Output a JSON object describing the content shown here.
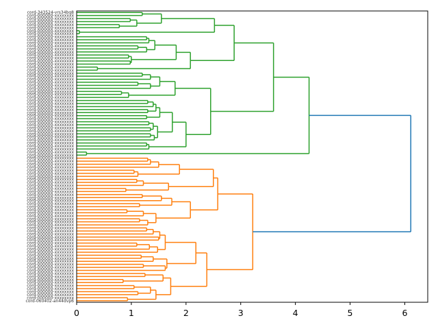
{
  "chart_data": {
    "type": "dendrogram",
    "orientation": "left-to-right",
    "title": "",
    "xlabel": "",
    "ylabel": "",
    "xlim": [
      0,
      6.42
    ],
    "xticks": [
      0,
      1,
      2,
      3,
      4,
      5,
      6
    ],
    "xtick_labels": [
      "0",
      "1",
      "2",
      "3",
      "4",
      "5",
      "6"
    ],
    "grid": false,
    "colors": {
      "cluster1": "#2ca02c",
      "cluster2": "#ff7f0e",
      "above_threshold": "#1f77b4"
    },
    "leaf_label_prefix": "cord-",
    "visible_leaf_labels": {
      "first": "cord-343524-vrs34bq8",
      "last": "cord-060402-an44dvp6"
    },
    "tree": {
      "h": 6.11,
      "c": "above_threshold",
      "children": [
        {
          "h": 4.25,
          "c": "cluster1",
          "children": [
            {
              "h": 3.6,
              "children": [
                {
                  "h": 2.88,
                  "children": [
                    {
                      "h": 2.52,
                      "children": [
                        {
                          "h": 1.55,
                          "children": [
                            {
                              "h": 1.2,
                              "children": [
                                "L",
                                "L"
                              ]
                            },
                            {
                              "h": 1.1,
                              "children": [
                                {
                                  "h": 0.98,
                                  "children": [
                                    "L",
                                    "L"
                                  ]
                                },
                                {
                                  "h": 0.78,
                                  "children": [
                                    "L",
                                    "L"
                                  ]
                                }
                              ]
                            }
                          ]
                        },
                        {
                          "h": 0.05,
                          "children": [
                            "L",
                            "L"
                          ]
                        }
                      ]
                    },
                    {
                      "h": 2.08,
                      "children": [
                        {
                          "h": 1.82,
                          "children": [
                            {
                              "h": 1.43,
                              "children": [
                                {
                                  "h": 1.32,
                                  "children": [
                                    {
                                      "h": 1.28,
                                      "children": [
                                        "L",
                                        "L"
                                      ]
                                    },
                                    "L"
                                  ]
                                },
                                {
                                  "h": 1.28,
                                  "children": [
                                    {
                                      "h": 1.12,
                                      "children": [
                                        "L",
                                        "L"
                                      ]
                                    },
                                    "L"
                                  ]
                                }
                              ]
                            },
                            {
                              "h": 1.0,
                              "children": [
                                {
                                  "h": 0.95,
                                  "children": [
                                    "L",
                                    "L"
                                  ]
                                },
                                {
                                  "h": 0.98,
                                  "children": [
                                    "L",
                                    "L"
                                  ]
                                }
                              ]
                            }
                          ]
                        },
                        {
                          "h": 0.38,
                          "children": [
                            "L",
                            "L"
                          ]
                        }
                      ]
                    }
                  ]
                },
                {
                  "h": 2.45,
                  "children": [
                    {
                      "h": 1.8,
                      "children": [
                        {
                          "h": 1.52,
                          "children": [
                            {
                              "h": 1.35,
                              "children": [
                                {
                                  "h": 1.2,
                                  "children": [
                                    "L",
                                    "L"
                                  ]
                                },
                                "L"
                              ]
                            },
                            {
                              "h": 1.35,
                              "children": [
                                {
                                  "h": 1.12,
                                  "children": [
                                    "L",
                                    "L"
                                  ]
                                },
                                "L"
                              ]
                            }
                          ]
                        },
                        {
                          "h": 0.95,
                          "children": [
                            {
                              "h": 0.82,
                              "children": [
                                "L",
                                "L"
                              ]
                            },
                            "L"
                          ]
                        }
                      ]
                    },
                    {
                      "h": 2.0,
                      "children": [
                        {
                          "h": 1.75,
                          "children": [
                            {
                              "h": 1.52,
                              "children": [
                                {
                                  "h": 1.45,
                                  "children": [
                                    {
                                      "h": 1.4,
                                      "children": [
                                        {
                                          "h": 1.3,
                                          "children": [
                                            "L",
                                            "L"
                                          ]
                                        },
                                        "L"
                                      ]
                                    },
                                    {
                                      "h": 1.3,
                                      "children": [
                                        "L",
                                        "L"
                                      ]
                                    }
                                  ]
                                },
                                {
                                  "h": 1.28,
                                  "children": [
                                    "L",
                                    "L"
                                  ]
                                }
                              ]
                            },
                            {
                              "h": 1.48,
                              "children": [
                                {
                                  "h": 1.4,
                                  "children": [
                                    {
                                      "h": 1.32,
                                      "children": [
                                        "L",
                                        "L"
                                      ]
                                    },
                                    {
                                      "h": 1.35,
                                      "children": [
                                        "L",
                                        "L"
                                      ]
                                    }
                                  ]
                                },
                                {
                                  "h": 1.42,
                                  "children": [
                                    {
                                      "h": 1.35,
                                      "children": [
                                        "L",
                                        "L"
                                      ]
                                    },
                                    "L"
                                  ]
                                }
                              ]
                            }
                          ]
                        },
                        {
                          "h": 1.32,
                          "children": [
                            {
                              "h": 1.28,
                              "children": [
                                "L",
                                "L"
                              ]
                            },
                            "L"
                          ]
                        }
                      ]
                    }
                  ]
                }
              ]
            },
            {
              "h": 0.18,
              "children": [
                "L",
                "L"
              ]
            }
          ]
        },
        {
          "h": 3.22,
          "c": "cluster2",
          "children": [
            {
              "h": 2.58,
              "children": [
                {
                  "h": 2.5,
                  "children": [
                    {
                      "h": 1.88,
                      "children": [
                        {
                          "h": 1.5,
                          "children": [
                            {
                              "h": 1.35,
                              "children": [
                                {
                                  "h": 1.3,
                                  "children": [
                                    "L",
                                    "L"
                                  ]
                                },
                                "L"
                              ]
                            },
                            "L"
                          ]
                        },
                        {
                          "h": 1.12,
                          "children": [
                            {
                              "h": 1.05,
                              "children": [
                                "L",
                                "L"
                              ]
                            },
                            "L"
                          ]
                        }
                      ]
                    },
                    {
                      "h": 1.68,
                      "children": [
                        {
                          "h": 1.22,
                          "children": [
                            {
                              "h": 1.1,
                              "children": [
                                "L",
                                "L"
                              ]
                            },
                            "L"
                          ]
                        },
                        {
                          "h": 0.9,
                          "children": [
                            "L",
                            "L"
                          ]
                        }
                      ]
                    }
                  ]
                },
                {
                  "h": 2.08,
                  "children": [
                    {
                      "h": 1.74,
                      "children": [
                        {
                          "h": 1.55,
                          "children": [
                            {
                              "h": 1.2,
                              "children": [
                                "L",
                                "L"
                              ]
                            },
                            "L"
                          ]
                        },
                        {
                          "h": 1.15,
                          "children": [
                            "L",
                            "L"
                          ]
                        }
                      ]
                    },
                    {
                      "h": 1.45,
                      "children": [
                        {
                          "h": 1.22,
                          "children": [
                            {
                              "h": 0.92,
                              "children": [
                                "L",
                                "L"
                              ]
                            },
                            "L"
                          ]
                        },
                        {
                          "h": 1.3,
                          "children": [
                            {
                              "h": 1.15,
                              "children": [
                                "L",
                                "L"
                              ]
                            },
                            "L"
                          ]
                        }
                      ]
                    }
                  ]
                }
              ]
            },
            {
              "h": 2.38,
              "children": [
                {
                  "h": 2.18,
                  "children": [
                    {
                      "h": 1.62,
                      "children": [
                        {
                          "h": 1.52,
                          "children": [
                            {
                              "h": 1.4,
                              "children": [
                                {
                                  "h": 1.28,
                                  "children": [
                                    "L",
                                    "L"
                                  ]
                                },
                                "L"
                              ]
                            },
                            {
                              "h": 1.5,
                              "children": [
                                "L",
                                "L"
                              ]
                            }
                          ]
                        },
                        {
                          "h": 1.48,
                          "children": [
                            {
                              "h": 1.33,
                              "children": [
                                {
                                  "h": 1.1,
                                  "children": [
                                    "L",
                                    "L"
                                  ]
                                },
                                "L"
                              ]
                            },
                            "L"
                          ]
                        }
                      ]
                    },
                    {
                      "h": 1.65,
                      "children": [
                        {
                          "h": 1.4,
                          "children": [
                            {
                              "h": 1.18,
                              "children": [
                                "L",
                                "L"
                              ]
                            },
                            "L"
                          ]
                        },
                        {
                          "h": 1.62,
                          "children": [
                            {
                              "h": 1.22,
                              "children": [
                                "L",
                                "L"
                              ]
                            },
                            "L"
                          ]
                        }
                      ]
                    }
                  ]
                },
                {
                  "h": 1.72,
                  "children": [
                    {
                      "h": 1.58,
                      "children": [
                        {
                          "h": 1.25,
                          "children": [
                            "L",
                            "L"
                          ]
                        },
                        {
                          "h": 0.85,
                          "children": [
                            "L",
                            "L"
                          ]
                        }
                      ]
                    },
                    {
                      "h": 1.45,
                      "children": [
                        {
                          "h": 1.35,
                          "children": [
                            {
                              "h": 1.05,
                              "children": [
                                "L",
                                "L"
                              ]
                            },
                            {
                              "h": 1.12,
                              "children": [
                                "L",
                                "L"
                              ]
                            }
                          ]
                        },
                        {
                          "h": 0.93,
                          "children": [
                            "L",
                            "L"
                          ]
                        }
                      ]
                    }
                  ]
                }
              ]
            }
          ]
        }
      ]
    }
  }
}
